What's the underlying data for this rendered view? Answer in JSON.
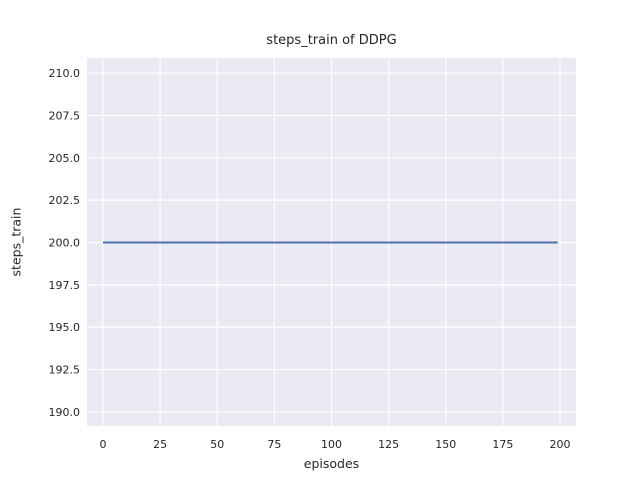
{
  "chart_data": {
    "type": "line",
    "title": "steps_train of DDPG",
    "xlabel": "episodes",
    "ylabel": "steps_train",
    "xlim": [
      -7,
      207
    ],
    "ylim": [
      189.17,
      210.89
    ],
    "xticks": [
      0,
      25,
      50,
      75,
      100,
      125,
      150,
      175,
      200
    ],
    "xtick_labels": [
      "0",
      "25",
      "50",
      "75",
      "100",
      "125",
      "150",
      "175",
      "200"
    ],
    "yticks": [
      190.0,
      192.5,
      195.0,
      197.5,
      200.0,
      202.5,
      205.0,
      207.5,
      210.0
    ],
    "ytick_labels": [
      "190.0",
      "192.5",
      "195.0",
      "197.5",
      "200.0",
      "202.5",
      "205.0",
      "207.5",
      "210.0"
    ],
    "grid": true,
    "legend": false,
    "series": [
      {
        "name": "steps_train",
        "x": [
          0,
          199
        ],
        "y": [
          200,
          200
        ],
        "color": "#4c72b0",
        "linewidth": 2
      }
    ],
    "colors": {
      "figure_background": "#ffffff",
      "axes_background": "#eaeaf2",
      "grid": "#ffffff",
      "text": "#262626",
      "line": "#4c72b0"
    }
  }
}
